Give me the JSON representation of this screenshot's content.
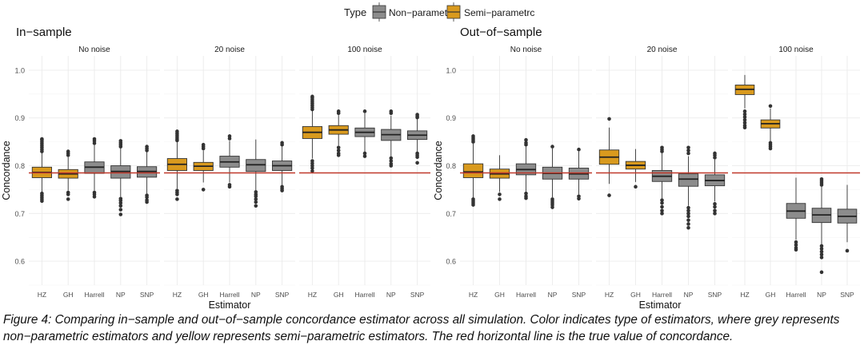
{
  "legend": {
    "title": "Type",
    "items": [
      {
        "label": "Non−parametric",
        "color": "#8c8c8c"
      },
      {
        "label": "Semi−parametrc",
        "color": "#d99a1e"
      }
    ]
  },
  "colors": {
    "np_fill": "#8c8c8c",
    "sp_fill": "#d99a1e",
    "box_stroke": "#333333",
    "true_line": "#c0392b",
    "grid": "#ebebeb",
    "panel_strip_text": "#1a1a1a",
    "axis_text": "#4d4d4d"
  },
  "caption": "Figure 4: Comparing in−sample and out−of−sample concordance estimator across all simulation. Color indicates type of estimators, where grey represents non−parametric estimators and yellow represents semi−parametric estimators. The red horizontal line is the true value of concordance.",
  "chart_data": [
    {
      "type": "box",
      "title": "In−sample",
      "xlabel": "Estimator",
      "ylabel": "Concordance",
      "ylim": [
        0.55,
        1.03
      ],
      "yticks": [
        0.6,
        0.7,
        0.8,
        0.9,
        1.0
      ],
      "tick_labels": [
        "0.6",
        "0.7",
        "0.8",
        "0.9",
        "1.0"
      ],
      "true_value": 0.785,
      "grid": true,
      "legend_position": "top",
      "categories": [
        "HZ",
        "GH",
        "Harrell",
        "NP",
        "SNP"
      ],
      "category_type": [
        "Semi−parametrc",
        "Semi−parametrc",
        "Non−parametric",
        "Non−parametric",
        "Non−parametric"
      ],
      "facets": [
        {
          "label": "No noise",
          "boxes": [
            {
              "q1": 0.775,
              "median": 0.786,
              "q3": 0.797,
              "lo": 0.745,
              "hi": 0.828,
              "outliers": [
                0.83,
                0.834,
                0.838,
                0.842,
                0.846,
                0.85,
                0.854,
                0.856,
                0.742,
                0.738,
                0.734,
                0.73,
                0.726
              ]
            },
            {
              "q1": 0.774,
              "median": 0.783,
              "q3": 0.792,
              "lo": 0.748,
              "hi": 0.818,
              "outliers": [
                0.822,
                0.826,
                0.83,
                0.744,
                0.74,
                0.73
              ]
            },
            {
              "q1": 0.784,
              "median": 0.797,
              "q3": 0.808,
              "lo": 0.748,
              "hi": 0.843,
              "outliers": [
                0.847,
                0.852,
                0.856,
                0.744,
                0.74,
                0.735
              ]
            },
            {
              "q1": 0.774,
              "median": 0.788,
              "q3": 0.8,
              "lo": 0.735,
              "hi": 0.837,
              "outliers": [
                0.84,
                0.844,
                0.848,
                0.852,
                0.731,
                0.727,
                0.722,
                0.716,
                0.708,
                0.698
              ]
            },
            {
              "q1": 0.776,
              "median": 0.788,
              "q3": 0.798,
              "lo": 0.742,
              "hi": 0.829,
              "outliers": [
                0.832,
                0.836,
                0.84,
                0.738,
                0.734,
                0.728,
                0.724
              ]
            }
          ]
        },
        {
          "label": "20 noise",
          "boxes": [
            {
              "q1": 0.79,
              "median": 0.803,
              "q3": 0.815,
              "lo": 0.752,
              "hi": 0.85,
              "outliers": [
                0.853,
                0.856,
                0.86,
                0.864,
                0.868,
                0.872,
                0.748,
                0.744,
                0.74,
                0.73
              ]
            },
            {
              "q1": 0.79,
              "median": 0.799,
              "q3": 0.807,
              "lo": 0.765,
              "hi": 0.832,
              "outliers": [
                0.836,
                0.84,
                0.844,
                0.75
              ]
            },
            {
              "q1": 0.797,
              "median": 0.808,
              "q3": 0.82,
              "lo": 0.765,
              "hi": 0.852,
              "outliers": [
                0.857,
                0.862,
                0.76,
                0.756
              ]
            },
            {
              "q1": 0.788,
              "median": 0.802,
              "q3": 0.813,
              "lo": 0.748,
              "hi": 0.855,
              "outliers": [
                0.745,
                0.74,
                0.736,
                0.73,
                0.724,
                0.716
              ]
            },
            {
              "q1": 0.79,
              "median": 0.8,
              "q3": 0.81,
              "lo": 0.76,
              "hi": 0.84,
              "outliers": [
                0.844,
                0.848,
                0.756,
                0.752,
                0.748
              ]
            }
          ]
        },
        {
          "label": "100 noise",
          "boxes": [
            {
              "q1": 0.857,
              "median": 0.87,
              "q3": 0.882,
              "lo": 0.815,
              "hi": 0.915,
              "outliers": [
                0.918,
                0.922,
                0.926,
                0.93,
                0.934,
                0.938,
                0.942,
                0.945,
                0.81,
                0.805,
                0.8,
                0.795,
                0.789
              ]
            },
            {
              "q1": 0.866,
              "median": 0.875,
              "q3": 0.884,
              "lo": 0.842,
              "hi": 0.906,
              "outliers": [
                0.91,
                0.914,
                0.838,
                0.832,
                0.826,
                0.822
              ]
            },
            {
              "q1": 0.861,
              "median": 0.87,
              "q3": 0.879,
              "lo": 0.83,
              "hi": 0.91,
              "outliers": [
                0.914,
                0.826,
                0.82
              ]
            },
            {
              "q1": 0.853,
              "median": 0.865,
              "q3": 0.876,
              "lo": 0.82,
              "hi": 0.905,
              "outliers": [
                0.91,
                0.914,
                0.816,
                0.81,
                0.804,
                0.8
              ]
            },
            {
              "q1": 0.855,
              "median": 0.864,
              "q3": 0.873,
              "lo": 0.83,
              "hi": 0.898,
              "outliers": [
                0.901,
                0.904,
                0.907,
                0.826,
                0.822,
                0.818,
                0.806
              ]
            }
          ]
        }
      ]
    },
    {
      "type": "box",
      "title": "Out−of−sample",
      "xlabel": "Estimator",
      "ylabel": "Concordance",
      "ylim": [
        0.55,
        1.03
      ],
      "yticks": [
        0.6,
        0.7,
        0.8,
        0.9,
        1.0
      ],
      "tick_labels": [
        "0.6",
        "0.7",
        "0.8",
        "0.9",
        "1.0"
      ],
      "true_value": 0.785,
      "grid": true,
      "legend_position": "top",
      "categories": [
        "HZ",
        "GH",
        "Harrell",
        "NP",
        "SNP"
      ],
      "category_type": [
        "Semi−parametrc",
        "Semi−parametrc",
        "Non−parametric",
        "Non−parametric",
        "Non−parametric"
      ],
      "facets": [
        {
          "label": "No noise",
          "boxes": [
            {
              "q1": 0.775,
              "median": 0.787,
              "q3": 0.804,
              "lo": 0.733,
              "hi": 0.846,
              "outliers": [
                0.85,
                0.854,
                0.858,
                0.862,
                0.73,
                0.726,
                0.722,
                0.718
              ]
            },
            {
              "q1": 0.774,
              "median": 0.783,
              "q3": 0.793,
              "lo": 0.745,
              "hi": 0.822,
              "outliers": [
                0.74,
                0.73
              ]
            },
            {
              "q1": 0.781,
              "median": 0.792,
              "q3": 0.804,
              "lo": 0.746,
              "hi": 0.84,
              "outliers": [
                0.844,
                0.848,
                0.854,
                0.742,
                0.736,
                0.732
              ]
            },
            {
              "q1": 0.772,
              "median": 0.784,
              "q3": 0.797,
              "lo": 0.734,
              "hi": 0.836,
              "outliers": [
                0.84,
                0.73,
                0.726,
                0.722,
                0.718,
                0.713
              ]
            },
            {
              "q1": 0.772,
              "median": 0.783,
              "q3": 0.795,
              "lo": 0.74,
              "hi": 0.83,
              "outliers": [
                0.834,
                0.736,
                0.731
              ]
            }
          ]
        },
        {
          "label": "20 noise",
          "boxes": [
            {
              "q1": 0.803,
              "median": 0.818,
              "q3": 0.833,
              "lo": 0.762,
              "hi": 0.88,
              "outliers": [
                0.898,
                0.738
              ]
            },
            {
              "q1": 0.793,
              "median": 0.801,
              "q3": 0.809,
              "lo": 0.766,
              "hi": 0.835,
              "outliers": [
                0.756
              ]
            },
            {
              "q1": 0.767,
              "median": 0.778,
              "q3": 0.79,
              "lo": 0.732,
              "hi": 0.826,
              "outliers": [
                0.83,
                0.834,
                0.838,
                0.728,
                0.722,
                0.714,
                0.706,
                0.7
              ]
            },
            {
              "q1": 0.757,
              "median": 0.772,
              "q3": 0.783,
              "lo": 0.716,
              "hi": 0.82,
              "outliers": [
                0.826,
                0.832,
                0.838,
                0.712,
                0.706,
                0.7,
                0.694,
                0.686,
                0.678,
                0.67
              ]
            },
            {
              "q1": 0.758,
              "median": 0.769,
              "q3": 0.781,
              "lo": 0.725,
              "hi": 0.813,
              "outliers": [
                0.817,
                0.822,
                0.826,
                0.72,
                0.714,
                0.706,
                0.7
              ]
            }
          ]
        },
        {
          "label": "100 noise",
          "boxes": [
            {
              "q1": 0.949,
              "median": 0.96,
              "q3": 0.969,
              "lo": 0.92,
              "hi": 0.99,
              "outliers": [
                0.914,
                0.908,
                0.902,
                0.896,
                0.89,
                0.884,
                0.88
              ]
            },
            {
              "q1": 0.879,
              "median": 0.888,
              "q3": 0.896,
              "lo": 0.852,
              "hi": 0.92,
              "outliers": [
                0.925,
                0.848,
                0.844,
                0.84,
                0.836
              ]
            },
            {
              "q1": 0.69,
              "median": 0.705,
              "q3": 0.721,
              "lo": 0.645,
              "hi": 0.775,
              "outliers": [
                0.64,
                0.634,
                0.628,
                0.624
              ]
            },
            {
              "q1": 0.681,
              "median": 0.697,
              "q3": 0.711,
              "lo": 0.636,
              "hi": 0.757,
              "outliers": [
                0.76,
                0.764,
                0.768,
                0.772,
                0.632,
                0.626,
                0.62,
                0.614,
                0.608,
                0.577
              ]
            },
            {
              "q1": 0.68,
              "median": 0.694,
              "q3": 0.709,
              "lo": 0.64,
              "hi": 0.76,
              "outliers": [
                0.622
              ]
            }
          ]
        }
      ]
    }
  ]
}
